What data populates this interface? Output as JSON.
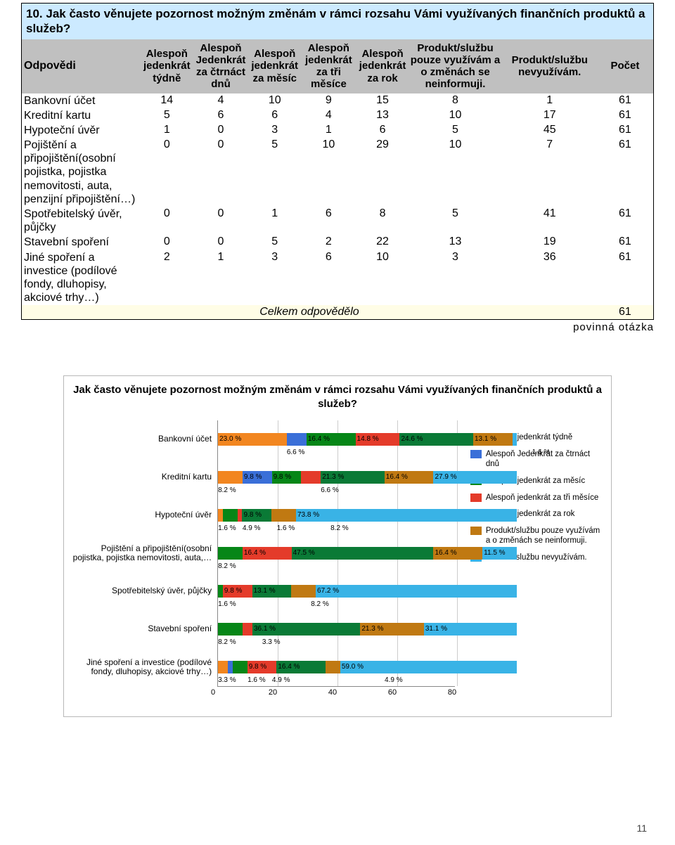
{
  "question": {
    "number": "10.",
    "text": "Jak často věnujete pozornost možným změnám v rámci rozsahu Vámi využívaných finančních produktů a služeb?"
  },
  "columns": [
    "Odpovědi",
    "Alespoň jedenkrát týdně",
    "Alespoň Jedenkrát za čtrnáct dnů",
    "Alespoň jedenkrát za měsíc",
    "Alespoň jedenkrát za tři měsíce",
    "Alespoň jedenkrát za rok",
    "Produkt/službu pouze využívám a o změnách se neinformuji.",
    "Produkt/službu nevyužívám.",
    "Počet"
  ],
  "rows": [
    {
      "label": "Bankovní účet",
      "v": [
        14,
        4,
        10,
        9,
        15,
        8,
        1
      ],
      "total": 61
    },
    {
      "label": "Kreditní kartu",
      "v": [
        5,
        6,
        6,
        4,
        13,
        10,
        17
      ],
      "total": 61
    },
    {
      "label": "Hypoteční úvěr",
      "v": [
        1,
        0,
        3,
        1,
        6,
        5,
        45
      ],
      "total": 61
    },
    {
      "label": "Pojištění a připojištění(osobní pojistka, pojistka nemovitosti, auta, penzijní připojištění…)",
      "v": [
        0,
        0,
        5,
        10,
        29,
        10,
        7
      ],
      "total": 61
    },
    {
      "label": "Spotřebitelský úvěr, půjčky",
      "v": [
        0,
        0,
        1,
        6,
        8,
        5,
        41
      ],
      "total": 61
    },
    {
      "label": "Stavební spoření",
      "v": [
        0,
        0,
        5,
        2,
        22,
        13,
        19
      ],
      "total": 61
    },
    {
      "label": "Jiné spoření a investice (podílové fondy, dluhopisy, akciové trhy…)",
      "v": [
        2,
        1,
        3,
        6,
        10,
        3,
        36
      ],
      "total": 61
    }
  ],
  "footer": {
    "label": "Celkem odpovědělo",
    "value": 61
  },
  "note": "povinná otázka",
  "chart": {
    "title": "Jak často věnujete pozornost možným změnám v rámci rozsahu Vámi využívaných finančních produktů a služeb?",
    "xmax": 80,
    "xticks": [
      0,
      20,
      40,
      60,
      80
    ],
    "colors": [
      "#f28620",
      "#3a6fd8",
      "#068617",
      "#e43b2a",
      "#0a7a36",
      "#c07912",
      "#39b3e6"
    ],
    "series_names": [
      "Alespoň jedenkrát týdně",
      "Alespoň Jedenkrát za čtrnáct dnů",
      "Alespoň jedenkrát za měsíc",
      "Alespoň jedenkrát za tři měsíce",
      "Alespoň jedenkrát za rok",
      "Produkt/službu pouze využívám a o změnách se neinformuji.",
      "Produkt/službu nevyužívám."
    ],
    "categories": [
      "Bankovní účet",
      "Kreditní kartu",
      "Hypoteční úvěr",
      "Pojištění a připojištění(osobní pojistka, pojistka nemovitosti, auta,…",
      "Spotřebitelský úvěr, půjčky",
      "Stavební spoření",
      "Jiné spoření a investice (podílové fondy, dluhopisy, akciové trhy…)"
    ],
    "percent_rows": [
      [
        23.0,
        6.6,
        16.4,
        14.8,
        24.6,
        13.1,
        1.6
      ],
      [
        8.2,
        9.8,
        9.8,
        6.6,
        21.3,
        16.4,
        27.9
      ],
      [
        1.6,
        0,
        4.9,
        1.6,
        9.8,
        8.2,
        73.8
      ],
      [
        0,
        0,
        8.2,
        16.4,
        47.5,
        16.4,
        11.5
      ],
      [
        0,
        0,
        1.6,
        9.8,
        13.1,
        8.2,
        67.2
      ],
      [
        0,
        0,
        8.2,
        3.3,
        36.1,
        21.3,
        31.1
      ],
      [
        3.3,
        1.6,
        4.9,
        9.8,
        16.4,
        4.9,
        59.0
      ]
    ]
  },
  "page_number": "11"
}
